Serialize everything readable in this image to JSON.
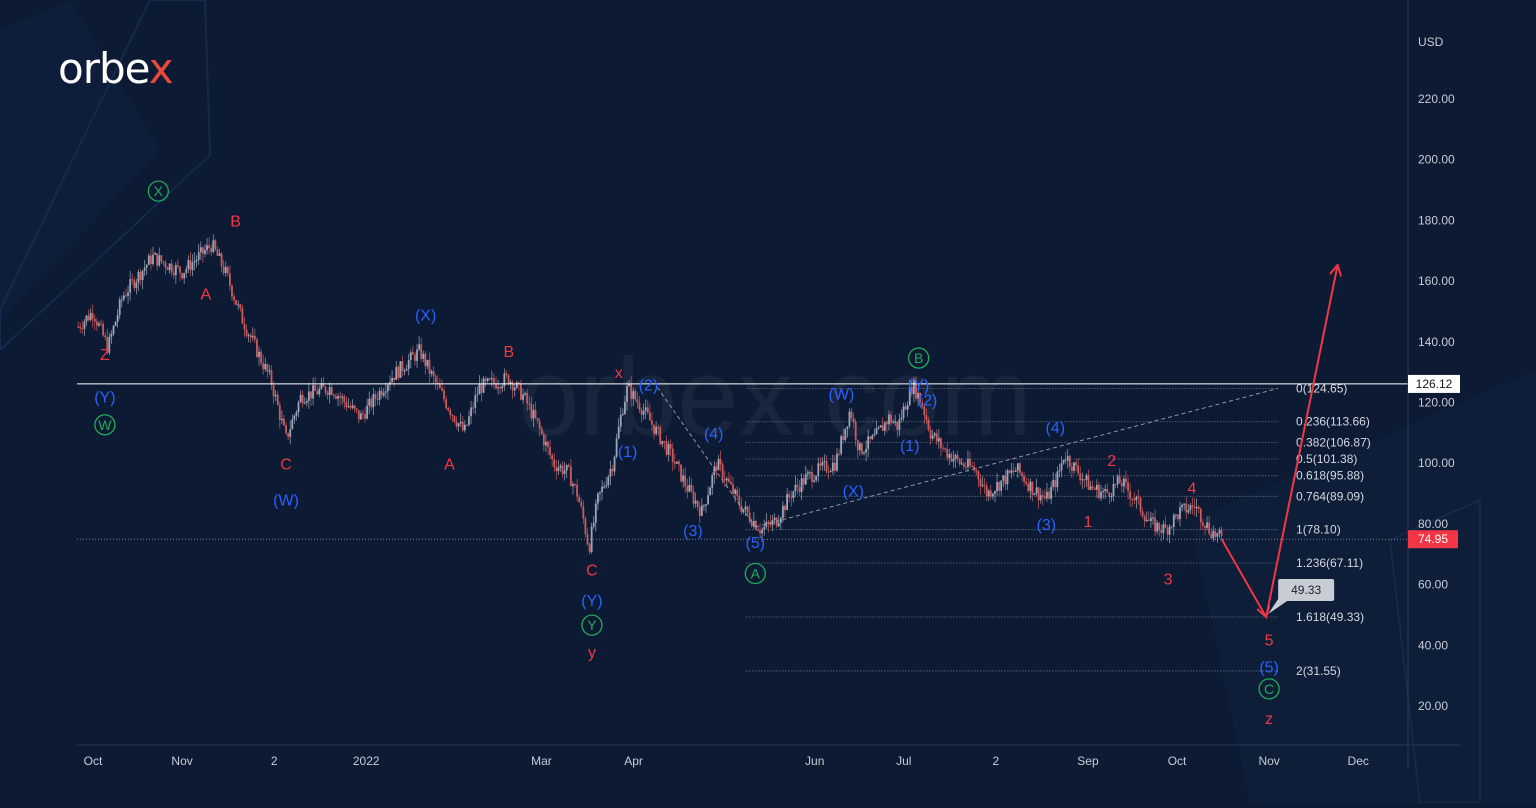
{
  "brand": {
    "name_main": "orbe",
    "name_accent": "x",
    "watermark": "orbex.com"
  },
  "colors": {
    "background": "#0c1a33",
    "red": "#f23645",
    "blue": "#2962ff",
    "green": "#22ab5a",
    "candle_up": "#9aa6ba",
    "candle_down": "#d05a5a",
    "axis_text": "#c8ccd6"
  },
  "chart_data": {
    "type": "line",
    "title": "",
    "xlabel": "",
    "ylabel": "USD",
    "ylim": [
      8,
      240
    ],
    "y_ticks": [
      "220.00",
      "200.00",
      "180.00",
      "160.00",
      "140.00",
      "120.00",
      "100.00",
      "80.00",
      "60.00",
      "40.00",
      "20.00"
    ],
    "y_tick_values": [
      220,
      200,
      180,
      160,
      140,
      120,
      100,
      80,
      60,
      40,
      20
    ],
    "x_ticks": [
      "Oct",
      "Nov",
      "2",
      "2022",
      "Mar",
      "Apr",
      "Jun",
      "Jul",
      "2",
      "Sep",
      "Oct",
      "Nov",
      "Dec"
    ],
    "x_tick_days": [
      0,
      30,
      61,
      92,
      151,
      182,
      243,
      273,
      304,
      335,
      365,
      396,
      426
    ],
    "price_series_anchors": [
      [
        -5,
        145
      ],
      [
        0,
        150
      ],
      [
        5,
        138
      ],
      [
        10,
        155
      ],
      [
        20,
        168
      ],
      [
        30,
        163
      ],
      [
        40,
        172
      ],
      [
        45,
        162
      ],
      [
        50,
        148
      ],
      [
        60,
        127
      ],
      [
        65,
        108
      ],
      [
        70,
        122
      ],
      [
        80,
        125
      ],
      [
        90,
        115
      ],
      [
        100,
        128
      ],
      [
        110,
        137
      ],
      [
        115,
        127
      ],
      [
        120,
        118
      ],
      [
        125,
        110
      ],
      [
        130,
        125
      ],
      [
        140,
        128
      ],
      [
        145,
        122
      ],
      [
        150,
        112
      ],
      [
        155,
        100
      ],
      [
        160,
        97
      ],
      [
        163,
        90
      ],
      [
        165,
        82
      ],
      [
        167,
        72
      ],
      [
        170,
        88
      ],
      [
        175,
        100
      ],
      [
        178,
        117
      ],
      [
        180,
        125
      ],
      [
        182,
        122
      ],
      [
        185,
        118
      ],
      [
        190,
        110
      ],
      [
        195,
        102
      ],
      [
        200,
        92
      ],
      [
        205,
        84
      ],
      [
        210,
        100
      ],
      [
        213,
        95
      ],
      [
        218,
        86
      ],
      [
        225,
        78
      ],
      [
        230,
        81
      ],
      [
        235,
        90
      ],
      [
        240,
        95
      ],
      [
        245,
        98
      ],
      [
        250,
        100
      ],
      [
        255,
        118
      ],
      [
        258,
        104
      ],
      [
        263,
        108
      ],
      [
        268,
        115
      ],
      [
        271,
        112
      ],
      [
        273,
        118
      ],
      [
        276,
        126
      ],
      [
        279,
        120
      ],
      [
        282,
        110
      ],
      [
        287,
        104
      ],
      [
        292,
        100
      ],
      [
        297,
        98
      ],
      [
        301,
        90
      ],
      [
        306,
        94
      ],
      [
        311,
        98
      ],
      [
        316,
        92
      ],
      [
        321,
        88
      ],
      [
        325,
        96
      ],
      [
        327,
        103
      ],
      [
        331,
        98
      ],
      [
        336,
        92
      ],
      [
        341,
        90
      ],
      [
        346,
        94
      ],
      [
        351,
        88
      ],
      [
        356,
        80
      ],
      [
        361,
        78
      ],
      [
        366,
        84
      ],
      [
        371,
        86
      ],
      [
        376,
        78
      ],
      [
        380,
        75
      ]
    ],
    "current_price": {
      "value": 74.95,
      "label": "74.95"
    },
    "horizontal_line": {
      "value": 126.12,
      "label": "126.12"
    },
    "fibonacci": {
      "start_day": 220,
      "end_day": 399,
      "levels": [
        {
          "label": "0(124.65)",
          "value": 124.65
        },
        {
          "label": "0.236(113.66)",
          "value": 113.66
        },
        {
          "label": "0.382(106.87)",
          "value": 106.87
        },
        {
          "label": "0.5(101.38)",
          "value": 101.38
        },
        {
          "label": "0.618(95.88)",
          "value": 95.88
        },
        {
          "label": "0.764(89.09)",
          "value": 89.09
        },
        {
          "label": "1(78.10)",
          "value": 78.1
        },
        {
          "label": "1.236(67.11)",
          "value": 67.11
        },
        {
          "label": "1.618(49.33)",
          "value": 49.33
        },
        {
          "label": "2(31.55)",
          "value": 31.55
        }
      ]
    },
    "dashed_lines": [
      {
        "points": [
          [
            190,
            125
          ],
          [
            223,
            79
          ]
        ]
      },
      {
        "points": [
          [
            223,
            79
          ],
          [
            399,
            124.65
          ]
        ]
      }
    ],
    "forecast_path": [
      [
        380,
        75
      ],
      [
        395,
        49.33
      ],
      [
        419,
        165
      ]
    ],
    "target_callout": {
      "value": 49.33,
      "label": "49.33",
      "day": 395
    },
    "wave_labels": [
      {
        "text": "Z",
        "day": 4,
        "price": 134,
        "color": "red"
      },
      {
        "text": "(Y)",
        "day": 4,
        "price": 120,
        "color": "blue"
      },
      {
        "text": "W",
        "day": 4,
        "price": 111,
        "color": "green",
        "circled": true
      },
      {
        "text": "X",
        "day": 22,
        "price": 188,
        "color": "green",
        "circled": true
      },
      {
        "text": "B",
        "day": 48,
        "price": 178,
        "color": "red"
      },
      {
        "text": "A",
        "day": 38,
        "price": 154,
        "color": "red"
      },
      {
        "text": "C",
        "day": 65,
        "price": 98,
        "color": "red"
      },
      {
        "text": "(W)",
        "day": 65,
        "price": 86,
        "color": "blue"
      },
      {
        "text": "(X)",
        "day": 112,
        "price": 147,
        "color": "blue"
      },
      {
        "text": "B",
        "day": 140,
        "price": 135,
        "color": "red"
      },
      {
        "text": "A",
        "day": 120,
        "price": 98,
        "color": "red"
      },
      {
        "text": "x",
        "day": 177,
        "price": 128,
        "color": "red"
      },
      {
        "text": "(2)",
        "day": 187,
        "price": 124,
        "color": "blue"
      },
      {
        "text": "(1)",
        "day": 180,
        "price": 102,
        "color": "blue"
      },
      {
        "text": "C",
        "day": 168,
        "price": 63,
        "color": "red"
      },
      {
        "text": "(Y)",
        "day": 168,
        "price": 53,
        "color": "blue"
      },
      {
        "text": "Y",
        "day": 168,
        "price": 45,
        "color": "green",
        "circled": true
      },
      {
        "text": "y",
        "day": 168,
        "price": 36,
        "color": "red"
      },
      {
        "text": "(4)",
        "day": 209,
        "price": 108,
        "color": "blue"
      },
      {
        "text": "(3)",
        "day": 202,
        "price": 76,
        "color": "blue"
      },
      {
        "text": "(5)",
        "day": 223,
        "price": 72,
        "color": "blue"
      },
      {
        "text": "A",
        "day": 223,
        "price": 62,
        "color": "green",
        "circled": true
      },
      {
        "text": "(W)",
        "day": 252,
        "price": 121,
        "color": "blue"
      },
      {
        "text": "(X)",
        "day": 256,
        "price": 89,
        "color": "blue"
      },
      {
        "text": "B",
        "day": 278,
        "price": 133,
        "color": "green",
        "circled": true
      },
      {
        "text": "(Y)",
        "day": 278,
        "price": 124,
        "color": "blue"
      },
      {
        "text": "(2)",
        "day": 281,
        "price": 119,
        "color": "blue"
      },
      {
        "text": "(1)",
        "day": 275,
        "price": 104,
        "color": "blue"
      },
      {
        "text": "(4)",
        "day": 324,
        "price": 110,
        "color": "blue"
      },
      {
        "text": "(3)",
        "day": 321,
        "price": 78,
        "color": "blue"
      },
      {
        "text": "2",
        "day": 343,
        "price": 99,
        "color": "red"
      },
      {
        "text": "1",
        "day": 335,
        "price": 79,
        "color": "red"
      },
      {
        "text": "4",
        "day": 370,
        "price": 90,
        "color": "red"
      },
      {
        "text": "3",
        "day": 362,
        "price": 60,
        "color": "red"
      },
      {
        "text": "5",
        "day": 396,
        "price": 40,
        "color": "red"
      },
      {
        "text": "(5)",
        "day": 396,
        "price": 31,
        "color": "blue"
      },
      {
        "text": "C",
        "day": 396,
        "price": 24,
        "color": "green",
        "circled": true
      },
      {
        "text": "z",
        "day": 396,
        "price": 14,
        "color": "red"
      }
    ]
  }
}
